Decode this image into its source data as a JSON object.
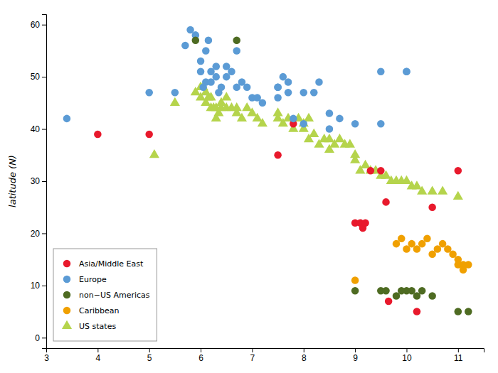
{
  "chart_data": {
    "type": "scatter",
    "ylabel": "latitude (N)",
    "xlim": [
      3,
      11.5
    ],
    "ylim": [
      -2,
      62
    ],
    "xticks": [
      3,
      4,
      5,
      6,
      7,
      8,
      9,
      10,
      11
    ],
    "yticks": [
      0,
      10,
      20,
      30,
      40,
      50,
      60
    ],
    "legend": "lower left",
    "series": [
      {
        "name": "Asia/Middle East",
        "color": "#e8192c",
        "marker": "circle",
        "x": [
          4.0,
          5.0,
          7.5,
          7.8,
          9.0,
          9.1,
          9.15,
          9.2,
          9.3,
          9.5,
          9.6,
          9.65,
          10.2,
          10.5,
          11.0
        ],
        "values": [
          39,
          39,
          35,
          41,
          22,
          22,
          21,
          22,
          32,
          32,
          26,
          7,
          5,
          25,
          32
        ]
      },
      {
        "name": "Europe",
        "color": "#5b9bd5",
        "marker": "circle",
        "x": [
          3.4,
          5.0,
          5.5,
          5.7,
          5.8,
          5.9,
          6.0,
          6.0,
          6.05,
          6.1,
          6.1,
          6.15,
          6.2,
          6.2,
          6.3,
          6.3,
          6.35,
          6.4,
          6.5,
          6.5,
          6.6,
          6.7,
          6.7,
          6.8,
          6.9,
          7.0,
          7.1,
          7.2,
          7.5,
          7.5,
          7.5,
          7.6,
          7.7,
          7.7,
          7.8,
          8.0,
          8.0,
          8.2,
          8.3,
          8.5,
          8.5,
          8.7,
          9.0,
          9.5,
          9.5,
          10.0,
          10.0
        ],
        "values": [
          42,
          47,
          47,
          56,
          59,
          58,
          51,
          53,
          48,
          49,
          55,
          57,
          49,
          51,
          52,
          50,
          47,
          48,
          52,
          50,
          51,
          48,
          55,
          49,
          48,
          46,
          46,
          45,
          48,
          48,
          46,
          50,
          47,
          49,
          42,
          47,
          41,
          47,
          49,
          40,
          43,
          42,
          41,
          51,
          41,
          51,
          51
        ]
      },
      {
        "name": "non−US Americas",
        "color": "#4e6b22",
        "marker": "circle",
        "x": [
          5.9,
          6.7,
          9.0,
          9.5,
          9.6,
          9.8,
          9.9,
          10.0,
          10.1,
          10.2,
          10.3,
          10.5,
          11.0,
          11.2
        ],
        "values": [
          57,
          57,
          9,
          9,
          9,
          8,
          9,
          9,
          9,
          8,
          9,
          8,
          5,
          5
        ]
      },
      {
        "name": "Caribbean",
        "color": "#f0a000",
        "marker": "circle",
        "x": [
          9.0,
          9.8,
          9.9,
          10.0,
          10.1,
          10.2,
          10.3,
          10.4,
          10.5,
          10.6,
          10.7,
          10.8,
          10.9,
          11.0,
          11.0,
          11.1,
          11.1,
          11.2
        ],
        "values": [
          11,
          18,
          19,
          17,
          18,
          17,
          18,
          19,
          16,
          17,
          18,
          17,
          16,
          15,
          14,
          14,
          13,
          14
        ]
      },
      {
        "name": "US states",
        "color": "#b5d44c",
        "marker": "triangle",
        "x": [
          5.1,
          5.5,
          5.9,
          6.0,
          6.0,
          6.05,
          6.1,
          6.1,
          6.15,
          6.2,
          6.2,
          6.25,
          6.3,
          6.3,
          6.35,
          6.4,
          6.4,
          6.5,
          6.5,
          6.6,
          6.7,
          6.7,
          6.8,
          6.9,
          7.0,
          7.1,
          7.2,
          7.5,
          7.5,
          7.6,
          7.7,
          7.8,
          7.9,
          8.0,
          8.0,
          8.1,
          8.1,
          8.2,
          8.3,
          8.4,
          8.5,
          8.5,
          8.6,
          8.7,
          8.8,
          8.9,
          9.0,
          9.0,
          9.1,
          9.2,
          9.3,
          9.4,
          9.5,
          9.6,
          9.7,
          9.8,
          9.9,
          10.0,
          10.1,
          10.2,
          10.3,
          10.5,
          10.7,
          11.0
        ],
        "values": [
          35,
          45,
          47,
          46,
          48,
          48,
          45,
          47,
          46,
          44,
          46,
          44,
          44,
          42,
          43,
          45,
          44,
          46,
          44,
          44,
          43,
          44,
          42,
          44,
          43,
          42,
          41,
          42,
          43,
          41,
          42,
          40,
          42,
          41,
          40,
          42,
          38,
          39,
          37,
          38,
          38,
          36,
          37,
          38,
          37,
          37,
          35,
          34,
          32,
          33,
          32,
          32,
          31,
          31,
          30,
          30,
          30,
          30,
          29,
          29,
          28,
          28,
          28,
          27
        ]
      }
    ]
  }
}
